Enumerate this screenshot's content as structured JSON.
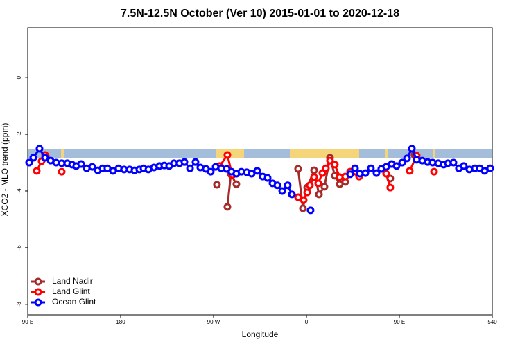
{
  "chart_data": {
    "type": "line",
    "title": "7.5N-12.5N October (Ver 10)   2015-01-01 to 2020-12-18",
    "xlabel": "Longitude",
    "ylabel": "XCO2 - MLO trend (ppm)",
    "xlim": [
      90,
      540
    ],
    "xticks": [
      {
        "value": 90,
        "label": "90 E"
      },
      180,
      {
        "value": 270,
        "label": "90 W"
      },
      {
        "value": 360,
        "label": "0"
      },
      {
        "value": 450,
        "label": "90 E"
      },
      540
    ],
    "ylim": [
      -8.37,
      1.76
    ],
    "yticks": [
      0,
      -2,
      -4,
      -6,
      -8
    ],
    "legend": "bottom-left",
    "series": [
      {
        "name": "Land Nadir",
        "color": "#a52a2a",
        "x": [
          107.5,
          null,
          273.3,
          null,
          283.4,
          286.8,
          292.1,
          null,
          351.9,
          356.6,
          360.7,
          367.4,
          372.1,
          377.4,
          382.8,
          387.5,
          392.2,
          397.6,
          null,
          441.2,
          null,
          464.7
        ],
        "values": [
          -2.78,
          null,
          -3.78,
          null,
          -4.56,
          -3.41,
          -3.76,
          null,
          -3.22,
          -4.61,
          -3.88,
          -3.27,
          -4.12,
          -3.85,
          -2.83,
          -3.46,
          -3.76,
          -3.68,
          null,
          -3.56,
          null,
          -2.73
        ]
      },
      {
        "name": "Land Glint",
        "color": "#ff0000",
        "x": [
          98.7,
          103.4,
          106.8,
          null,
          122.9,
          null,
          276,
          283.4,
          288.1,
          null,
          351.9,
          357.3,
          360.7,
          363.3,
          367.4,
          371.4,
          375.4,
          378.8,
          382.8,
          387.5,
          392.2,
          397.6,
          402.3,
          411,
          null,
          437.2,
          441.2,
          null,
          460,
          466.8,
          null,
          483.6
        ],
        "values": [
          -3.29,
          -2.95,
          -2.73,
          null,
          -3.32,
          null,
          -3.12,
          -2.73,
          -3.44,
          null,
          -4.22,
          -4.32,
          -4.05,
          -3.8,
          -3.51,
          -3.73,
          -3.37,
          -3.2,
          -2.93,
          -3.07,
          -3.51,
          -3.49,
          -3.32,
          -3.49,
          null,
          -3.39,
          -3.88,
          null,
          -3.29,
          -2.76,
          null,
          -3.32
        ]
      },
      {
        "name": "Ocean Glint",
        "color": "#0000ff",
        "x": [
          91.3,
          95.4,
          101.4,
          106.8,
          112.2,
          117.5,
          122.9,
          128.3,
          133,
          137,
          141.7,
          147.1,
          152.5,
          157.8,
          162.5,
          167.2,
          172.6,
          178,
          183.4,
          188.7,
          193.4,
          198.1,
          202.2,
          206.9,
          212.2,
          217.6,
          222.3,
          227,
          231.7,
          237.1,
          241.8,
          247.2,
          252.5,
          257.2,
          262.6,
          267.3,
          272,
          277.4,
          282.7,
          287.4,
          292.1,
          296.9,
          302.2,
          306.9,
          312.3,
          317.7,
          322.4,
          327.1,
          331.8,
          336.5,
          341.8,
          345.9,
          null,
          364,
          null,
          402.3,
          407,
          411.7,
          417.1,
          422.4,
          427.8,
          432.5,
          437.2,
          442.6,
          447.3,
          452.7,
          457.4,
          462.1,
          466.8,
          472.1,
          477.5,
          482.2,
          487.6,
          492.9,
          497,
          502.4,
          507.7,
          512.4,
          517.8,
          523.2,
          527.9,
          532.6,
          538
        ],
        "values": [
          -3.0,
          -2.83,
          -2.51,
          -2.83,
          -2.93,
          -3.0,
          -3.02,
          -3.02,
          -3.07,
          -3.12,
          -3.05,
          -3.2,
          -3.15,
          -3.27,
          -3.2,
          -3.2,
          -3.29,
          -3.2,
          -3.24,
          -3.24,
          -3.27,
          -3.24,
          -3.2,
          -3.24,
          -3.17,
          -3.12,
          -3.1,
          -3.12,
          -3.02,
          -3.02,
          -2.98,
          -3.2,
          -2.98,
          -3.17,
          -3.22,
          -3.32,
          -3.15,
          -3.2,
          -3.22,
          -3.32,
          -3.39,
          -3.32,
          -3.34,
          -3.39,
          -3.29,
          -3.49,
          -3.54,
          -3.73,
          -3.8,
          -4.0,
          -3.8,
          -4.12,
          null,
          -4.68,
          null,
          -3.41,
          -3.2,
          -3.39,
          -3.37,
          -3.2,
          -3.37,
          -3.22,
          -3.15,
          -3.05,
          -3.12,
          -3.0,
          -2.85,
          -2.51,
          -2.9,
          -2.93,
          -2.98,
          -3.0,
          -3.02,
          -3.07,
          -3.02,
          -3.0,
          -3.2,
          -3.12,
          -3.24,
          -3.2,
          -3.2,
          -3.29,
          -3.2
        ]
      }
    ]
  }
}
